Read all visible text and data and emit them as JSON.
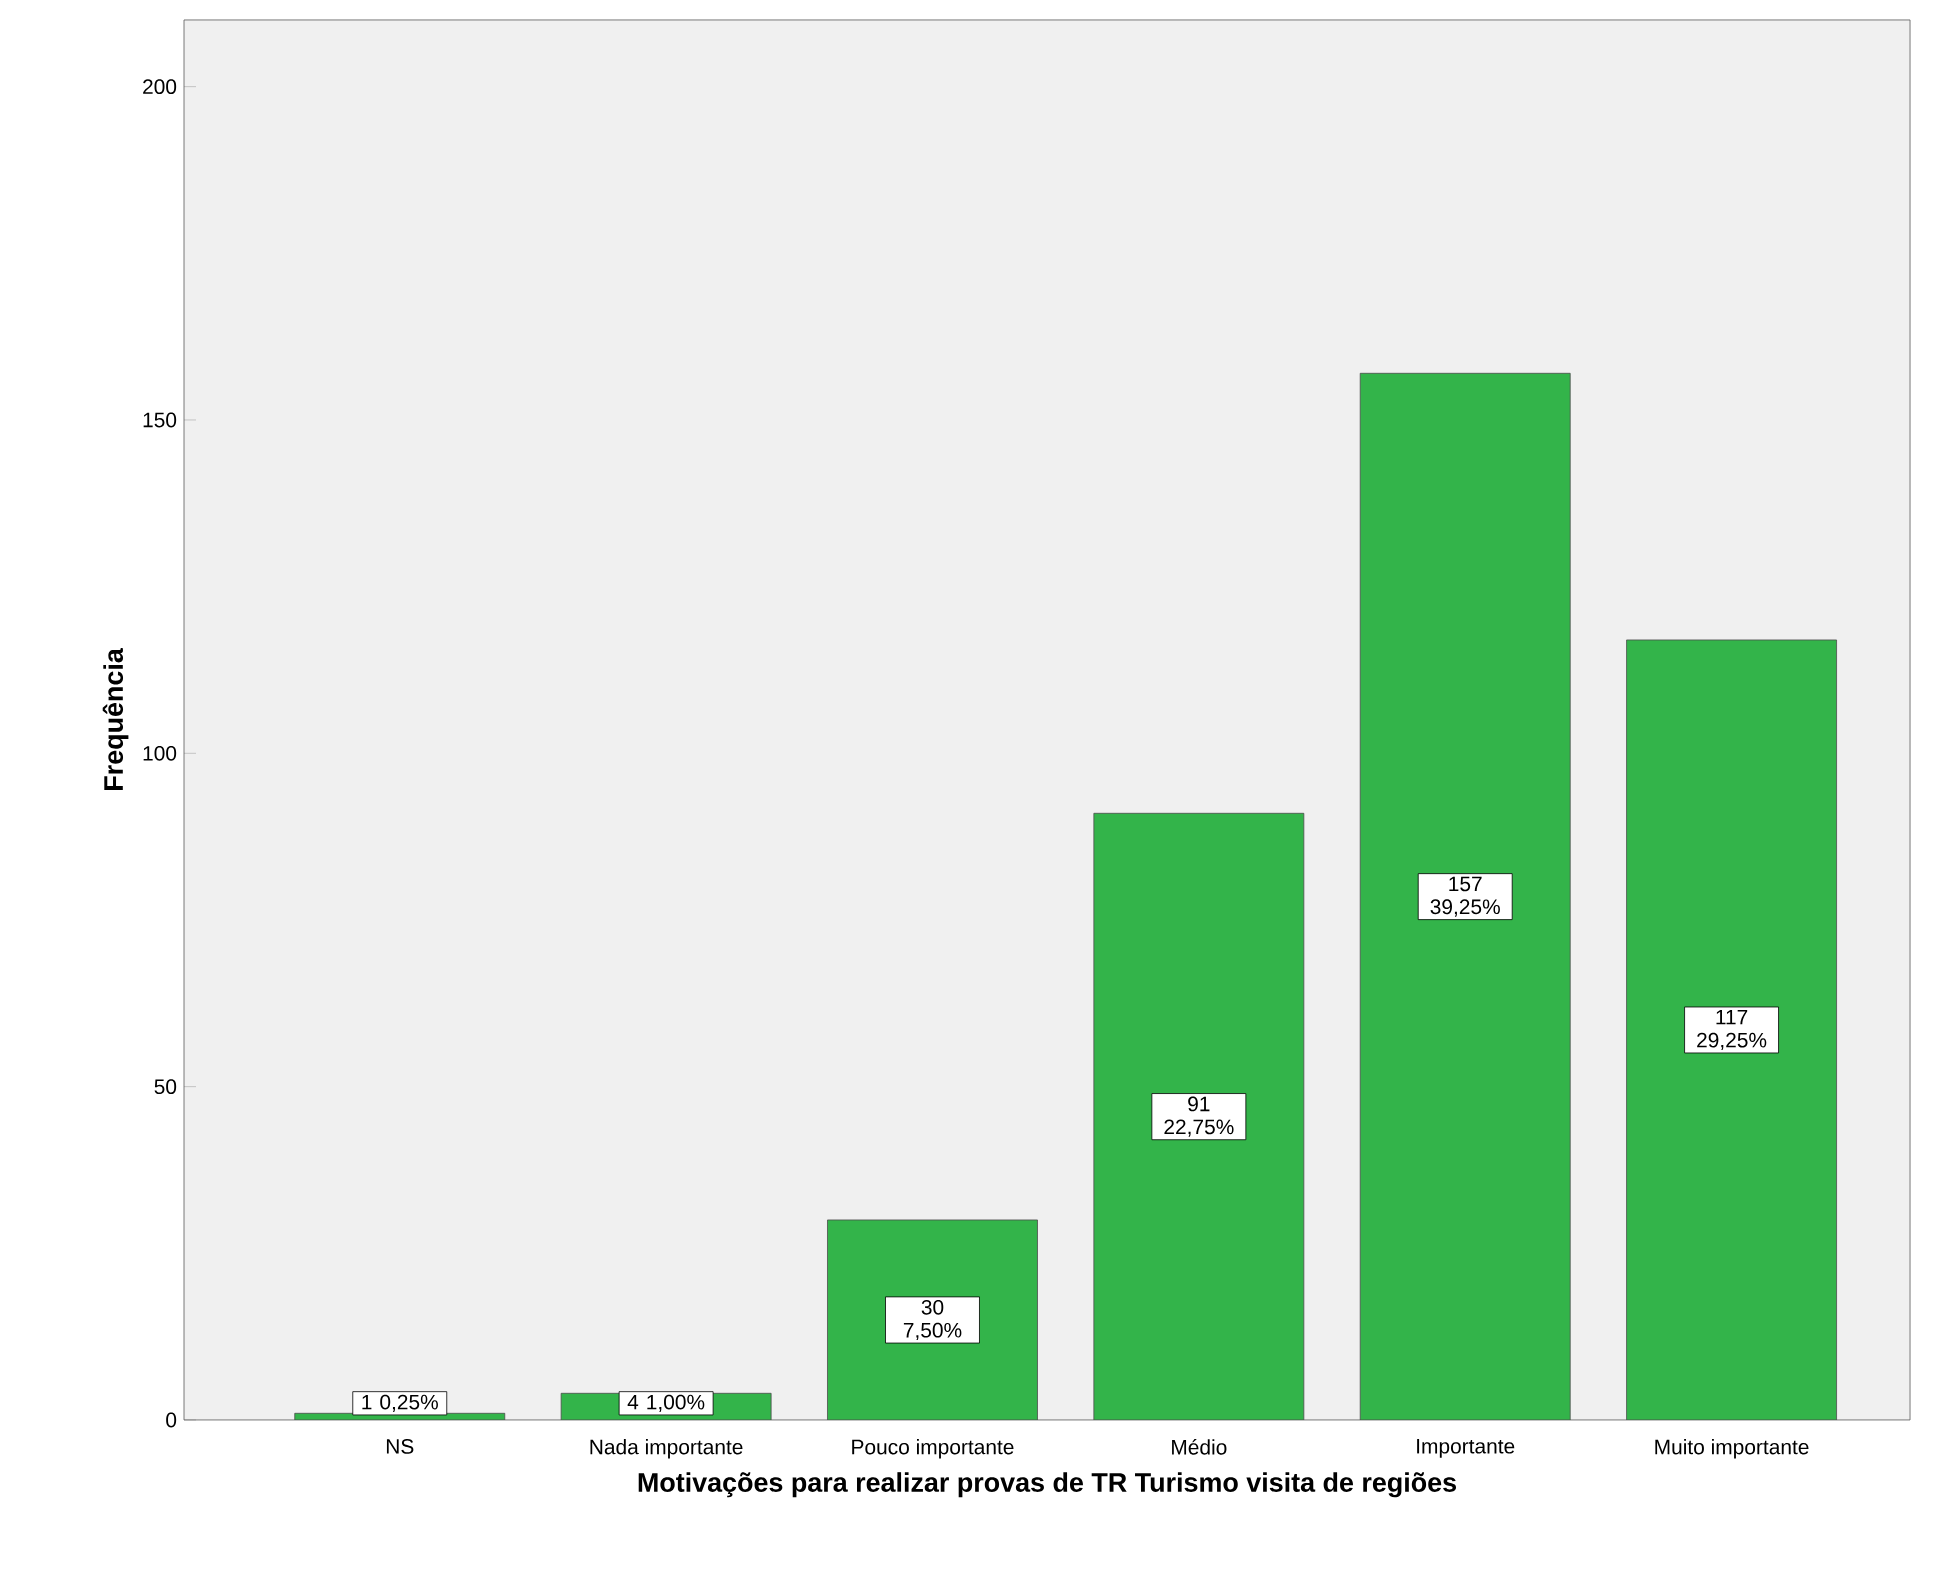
{
  "chart_data": {
    "type": "bar",
    "xlabel": "Motivações para realizar provas de TR Turismo visita de regiões",
    "ylabel": "Frequência",
    "categories": [
      "NS",
      "Nada importante",
      "Pouco importante",
      "Médio",
      "Importante",
      "Muito importante"
    ],
    "values": [
      1,
      4,
      30,
      91,
      157,
      117
    ],
    "value_labels": [
      "1 0,25%",
      "4 1,00%",
      "30 7,50%",
      "91 22,75%",
      "157 39,25%",
      "117 29,25%"
    ],
    "color": "#33b44a",
    "ylim": [
      0,
      210
    ],
    "yticks": [
      0,
      50,
      100,
      150,
      200
    ],
    "grid": false
  }
}
